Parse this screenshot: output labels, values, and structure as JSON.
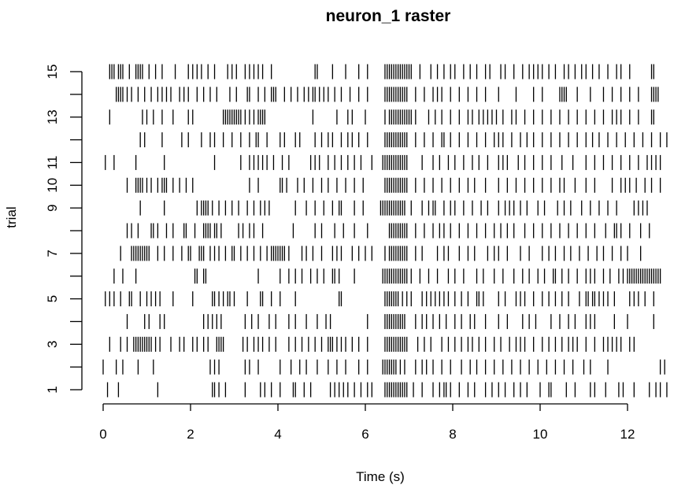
{
  "chart_data": {
    "type": "raster",
    "title": "neuron_1 raster",
    "xlabel": "Time (s)",
    "ylabel": "trial",
    "xlim": [
      0,
      12
    ],
    "ylim": [
      1,
      15
    ],
    "x_ticks": [
      0,
      2,
      4,
      6,
      8,
      10,
      12
    ],
    "x_tick_labels": [
      "0",
      "2",
      "4",
      "6",
      "8",
      "10",
      "12"
    ],
    "y_ticks": [
      1,
      2,
      3,
      4,
      5,
      6,
      7,
      8,
      9,
      10,
      11,
      12,
      13,
      14,
      15
    ],
    "y_tick_labels": [
      "1",
      "",
      "3",
      "",
      "5",
      "",
      "7",
      "",
      "9",
      "10",
      "11",
      "",
      "13",
      "",
      "15"
    ],
    "trials": [
      {
        "trial": 1,
        "spikes": [
          0.1,
          0.35,
          1.25,
          2.5,
          2.55,
          2.65,
          2.8,
          3.25,
          3.6,
          3.7,
          3.85,
          4.05,
          4.35,
          4.4,
          4.6,
          4.75,
          5.2,
          5.3,
          5.4,
          5.5,
          5.6,
          5.75,
          5.9,
          6.05,
          6.15,
          6.45,
          6.5,
          6.55,
          6.6,
          6.65,
          6.7,
          6.75,
          6.8,
          6.85,
          6.9,
          6.95,
          7.1,
          7.3,
          7.55,
          7.7,
          7.8,
          7.85,
          7.95,
          8.15,
          8.35,
          8.5,
          8.75,
          8.9,
          9.05,
          9.2,
          9.4,
          9.55,
          9.7,
          10.0,
          10.2,
          10.25,
          10.6,
          10.8,
          11.15,
          11.25,
          11.5,
          11.8,
          11.9,
          12.15,
          12.5,
          12.65,
          12.75,
          12.9
        ]
      },
      {
        "trial": 2,
        "spikes": [
          0.0,
          0.3,
          0.45,
          0.8,
          1.15,
          2.45,
          2.55,
          2.65,
          3.25,
          3.35,
          3.55,
          4.05,
          4.3,
          4.5,
          4.65,
          4.9,
          5.15,
          5.35,
          5.55,
          5.85,
          6.05,
          6.4,
          6.45,
          6.5,
          6.55,
          6.6,
          6.65,
          6.7,
          6.8,
          6.9,
          7.15,
          7.3,
          7.4,
          7.55,
          7.75,
          7.95,
          8.2,
          8.4,
          8.55,
          8.75,
          8.95,
          9.15,
          9.35,
          9.55,
          9.75,
          9.95,
          10.15,
          10.35,
          10.55,
          10.75,
          11.0,
          11.15,
          11.55,
          12.75,
          12.85
        ]
      },
      {
        "trial": 3,
        "spikes": [
          0.15,
          0.4,
          0.55,
          0.7,
          0.75,
          0.8,
          0.85,
          0.9,
          0.95,
          1.0,
          1.05,
          1.1,
          1.2,
          1.3,
          1.55,
          1.75,
          1.85,
          2.05,
          2.15,
          2.3,
          2.4,
          2.6,
          2.65,
          2.7,
          2.75,
          3.2,
          3.3,
          3.45,
          3.55,
          3.65,
          3.8,
          3.95,
          4.25,
          4.4,
          4.55,
          4.7,
          4.85,
          5.0,
          5.15,
          5.2,
          5.25,
          5.35,
          5.45,
          5.55,
          5.7,
          5.85,
          6.05,
          6.45,
          6.5,
          6.55,
          6.6,
          6.65,
          6.7,
          6.75,
          6.8,
          6.85,
          6.9,
          6.95,
          7.2,
          7.35,
          7.5,
          7.75,
          7.9,
          8.05,
          8.2,
          8.35,
          8.45,
          8.6,
          8.75,
          8.95,
          9.1,
          9.3,
          9.45,
          9.55,
          9.65,
          9.85,
          10.05,
          10.2,
          10.35,
          10.5,
          10.65,
          10.75,
          10.85,
          11.05,
          11.25,
          11.45,
          11.55,
          11.65,
          11.75,
          11.85,
          12.05,
          12.15
        ]
      },
      {
        "trial": 4,
        "spikes": [
          0.55,
          0.95,
          1.05,
          1.3,
          1.4,
          2.3,
          2.4,
          2.5,
          2.6,
          2.7,
          3.25,
          3.4,
          3.55,
          3.8,
          3.95,
          4.25,
          4.4,
          4.65,
          4.9,
          5.1,
          5.2,
          6.05,
          6.45,
          6.5,
          6.55,
          6.6,
          6.65,
          6.7,
          6.75,
          6.8,
          6.85,
          6.9,
          7.15,
          7.3,
          7.4,
          7.55,
          7.7,
          7.85,
          8.05,
          8.2,
          8.4,
          8.5,
          8.75,
          9.05,
          9.25,
          9.6,
          9.75,
          9.9,
          10.25,
          10.45,
          10.65,
          10.8,
          11.05,
          11.15,
          11.25,
          11.7,
          12.0,
          12.6
        ]
      },
      {
        "trial": 5,
        "spikes": [
          0.05,
          0.15,
          0.25,
          0.4,
          0.6,
          0.65,
          0.85,
          1.0,
          1.1,
          1.2,
          1.3,
          1.6,
          2.05,
          2.5,
          2.55,
          2.65,
          2.75,
          2.85,
          2.9,
          3.0,
          3.3,
          3.6,
          3.65,
          3.85,
          4.05,
          4.4,
          5.4,
          5.45,
          6.45,
          6.5,
          6.55,
          6.6,
          6.65,
          6.7,
          6.75,
          6.85,
          6.95,
          7.05,
          7.3,
          7.4,
          7.5,
          7.6,
          7.7,
          7.8,
          7.9,
          8.05,
          8.2,
          8.35,
          8.55,
          8.6,
          8.7,
          9.05,
          9.2,
          9.45,
          9.55,
          9.65,
          9.85,
          10.05,
          10.2,
          10.35,
          10.5,
          10.65,
          10.9,
          11.05,
          11.1,
          11.2,
          11.25,
          11.35,
          11.45,
          11.55,
          11.7,
          12.05,
          12.15,
          12.25,
          12.4,
          12.6
        ]
      },
      {
        "trial": 6,
        "spikes": [
          0.25,
          0.45,
          0.75,
          2.1,
          2.15,
          2.3,
          2.35,
          3.55,
          4.05,
          4.25,
          4.4,
          4.55,
          4.75,
          4.9,
          5.05,
          5.25,
          5.3,
          5.4,
          5.75,
          6.4,
          6.45,
          6.5,
          6.55,
          6.6,
          6.65,
          6.7,
          6.75,
          6.8,
          6.85,
          6.9,
          6.95,
          7.05,
          7.25,
          7.45,
          7.65,
          7.9,
          8.05,
          8.25,
          8.55,
          8.7,
          8.95,
          9.15,
          9.4,
          9.6,
          9.75,
          9.95,
          10.1,
          10.3,
          10.35,
          10.5,
          10.65,
          10.85,
          11.05,
          11.15,
          11.25,
          11.45,
          11.6,
          11.8,
          11.9,
          12.0,
          12.05,
          12.1,
          12.15,
          12.2,
          12.25,
          12.3,
          12.35,
          12.4,
          12.45,
          12.5,
          12.55,
          12.6,
          12.65,
          12.7,
          12.75
        ]
      },
      {
        "trial": 7,
        "spikes": [
          0.4,
          0.65,
          0.7,
          0.75,
          0.8,
          0.85,
          0.9,
          0.95,
          1.0,
          1.05,
          1.25,
          1.4,
          1.6,
          1.8,
          1.95,
          2.0,
          2.2,
          2.25,
          2.3,
          2.45,
          2.55,
          2.65,
          2.8,
          2.95,
          3.0,
          3.15,
          3.3,
          3.45,
          3.6,
          3.75,
          3.85,
          3.9,
          3.95,
          4.0,
          4.05,
          4.1,
          4.15,
          4.25,
          4.55,
          4.65,
          4.8,
          5.0,
          5.25,
          5.35,
          5.45,
          5.7,
          5.85,
          6.0,
          6.15,
          6.45,
          6.55,
          6.6,
          6.65,
          6.7,
          6.75,
          6.8,
          6.85,
          6.9,
          6.95,
          7.15,
          7.3,
          7.65,
          7.8,
          7.9,
          8.15,
          8.35,
          8.5,
          8.8,
          8.95,
          9.05,
          9.25,
          9.55,
          9.75,
          10.05,
          10.2,
          10.35,
          10.55,
          10.7,
          10.9,
          11.1,
          11.3,
          11.45,
          11.65,
          11.85,
          12.0,
          12.3
        ]
      },
      {
        "trial": 8,
        "spikes": [
          0.55,
          0.65,
          0.8,
          1.1,
          1.15,
          1.25,
          1.45,
          1.6,
          1.85,
          1.9,
          2.1,
          2.3,
          2.35,
          2.4,
          2.45,
          2.55,
          2.6,
          2.7,
          3.1,
          3.2,
          3.35,
          3.45,
          3.65,
          4.35,
          4.85,
          5.0,
          5.3,
          5.5,
          5.75,
          6.05,
          6.55,
          6.6,
          6.65,
          6.7,
          6.75,
          6.8,
          6.85,
          6.9,
          6.95,
          7.15,
          7.35,
          7.55,
          7.7,
          7.8,
          7.95,
          8.15,
          8.35,
          8.55,
          8.75,
          8.95,
          9.1,
          9.25,
          9.4,
          9.65,
          9.85,
          10.05,
          10.25,
          10.45,
          10.65,
          10.85,
          11.05,
          11.25,
          11.5,
          11.7,
          11.75,
          11.85,
          12.05,
          12.3,
          12.5
        ]
      },
      {
        "trial": 9,
        "spikes": [
          0.85,
          1.4,
          2.15,
          2.25,
          2.3,
          2.35,
          2.4,
          2.5,
          2.65,
          2.8,
          2.95,
          3.1,
          3.3,
          3.45,
          3.6,
          3.7,
          3.8,
          4.4,
          4.65,
          4.85,
          5.05,
          5.25,
          5.4,
          5.45,
          5.75,
          5.95,
          6.35,
          6.4,
          6.45,
          6.5,
          6.55,
          6.6,
          6.65,
          6.7,
          6.75,
          6.8,
          6.85,
          6.9,
          7.05,
          7.3,
          7.45,
          7.55,
          7.6,
          7.8,
          7.95,
          8.05,
          8.25,
          8.45,
          8.65,
          8.8,
          9.05,
          9.2,
          9.3,
          9.4,
          9.55,
          9.7,
          9.95,
          10.1,
          10.4,
          10.55,
          10.7,
          10.95,
          11.15,
          11.35,
          11.55,
          11.75,
          12.15,
          12.25,
          12.35,
          12.45
        ]
      },
      {
        "trial": 10,
        "spikes": [
          0.55,
          0.75,
          0.8,
          0.85,
          0.9,
          1.0,
          1.1,
          1.25,
          1.35,
          1.4,
          1.45,
          1.6,
          1.75,
          1.9,
          2.05,
          3.35,
          3.55,
          4.05,
          4.1,
          4.2,
          4.45,
          4.6,
          4.8,
          5.0,
          5.15,
          5.35,
          5.55,
          5.75,
          5.95,
          6.45,
          6.5,
          6.55,
          6.6,
          6.65,
          6.7,
          6.75,
          6.8,
          6.85,
          6.9,
          6.95,
          7.15,
          7.35,
          7.55,
          7.75,
          7.95,
          8.15,
          8.35,
          8.5,
          8.75,
          9.05,
          9.25,
          9.45,
          9.65,
          9.85,
          10.05,
          10.25,
          10.45,
          10.55,
          10.8,
          11.05,
          11.25,
          11.65,
          11.85,
          11.95,
          12.05,
          12.2,
          12.4,
          12.55,
          12.75
        ]
      },
      {
        "trial": 11,
        "spikes": [
          0.05,
          0.25,
          0.75,
          1.4,
          2.55,
          3.15,
          3.35,
          3.45,
          3.55,
          3.65,
          3.75,
          3.9,
          4.1,
          4.25,
          4.75,
          4.85,
          4.95,
          5.15,
          5.3,
          5.45,
          5.6,
          5.75,
          5.9,
          6.15,
          6.4,
          6.45,
          6.5,
          6.55,
          6.6,
          6.65,
          6.7,
          6.75,
          6.8,
          6.85,
          6.9,
          6.95,
          7.3,
          7.55,
          7.7,
          7.9,
          8.05,
          8.25,
          8.45,
          8.6,
          8.8,
          9.05,
          9.15,
          9.25,
          9.5,
          9.65,
          9.85,
          10.05,
          10.25,
          10.5,
          10.75,
          11.05,
          11.25,
          11.45,
          11.65,
          11.85,
          12.05,
          12.25,
          12.45,
          12.55,
          12.65,
          12.75
        ]
      },
      {
        "trial": 12,
        "spikes": [
          0.85,
          0.95,
          1.35,
          1.8,
          1.95,
          2.25,
          2.45,
          2.55,
          2.75,
          2.95,
          3.15,
          3.35,
          3.5,
          3.55,
          3.75,
          4.05,
          4.15,
          4.4,
          4.5,
          4.85,
          5.0,
          5.15,
          5.25,
          5.45,
          5.6,
          5.7,
          5.85,
          6.05,
          6.45,
          6.5,
          6.55,
          6.6,
          6.65,
          6.7,
          6.75,
          6.8,
          6.85,
          6.9,
          6.95,
          7.15,
          7.35,
          7.55,
          7.75,
          7.8,
          7.95,
          8.15,
          8.35,
          8.55,
          8.75,
          8.95,
          9.05,
          9.15,
          9.35,
          9.55,
          9.7,
          9.85,
          10.05,
          10.25,
          10.45,
          10.65,
          10.85,
          11.05,
          11.2,
          11.35,
          11.55,
          11.75,
          11.95,
          12.15,
          12.35,
          12.55,
          12.75,
          12.9
        ]
      },
      {
        "trial": 13,
        "spikes": [
          0.15,
          0.9,
          1.0,
          1.15,
          1.35,
          1.6,
          1.95,
          2.05,
          2.75,
          2.8,
          2.85,
          2.9,
          2.95,
          3.0,
          3.05,
          3.1,
          3.15,
          3.25,
          3.35,
          3.45,
          3.55,
          3.6,
          3.65,
          3.7,
          4.8,
          5.35,
          5.6,
          5.7,
          6.0,
          6.45,
          6.55,
          6.6,
          6.65,
          6.7,
          6.75,
          6.8,
          6.85,
          6.9,
          6.95,
          7.0,
          7.05,
          7.15,
          7.45,
          7.6,
          7.75,
          7.95,
          8.15,
          8.35,
          8.45,
          8.6,
          8.7,
          8.8,
          8.9,
          9.0,
          9.15,
          9.35,
          9.45,
          9.65,
          9.85,
          10.05,
          10.25,
          10.45,
          10.65,
          10.85,
          11.05,
          11.25,
          11.45,
          11.65,
          11.75,
          11.85,
          12.05,
          12.25,
          12.55,
          12.6
        ]
      },
      {
        "trial": 14,
        "spikes": [
          0.3,
          0.35,
          0.4,
          0.45,
          0.55,
          0.65,
          0.8,
          0.95,
          1.1,
          1.25,
          1.35,
          1.45,
          1.55,
          1.75,
          1.85,
          1.95,
          2.15,
          2.3,
          2.45,
          2.6,
          2.9,
          3.05,
          3.3,
          3.35,
          3.55,
          3.7,
          3.85,
          3.9,
          3.95,
          4.15,
          4.3,
          4.45,
          4.6,
          4.7,
          4.8,
          4.85,
          4.95,
          5.05,
          5.15,
          5.3,
          5.45,
          5.65,
          5.85,
          6.05,
          6.45,
          6.5,
          6.55,
          6.6,
          6.65,
          6.7,
          6.75,
          6.8,
          6.85,
          6.9,
          6.95,
          7.15,
          7.35,
          7.55,
          7.65,
          7.75,
          7.95,
          8.15,
          8.35,
          8.55,
          8.75,
          9.05,
          9.45,
          9.85,
          10.05,
          10.45,
          10.5,
          10.55,
          10.6,
          10.85,
          11.15,
          11.45,
          11.65,
          11.85,
          12.05,
          12.25,
          12.55,
          12.6,
          12.65,
          12.7
        ]
      },
      {
        "trial": 15,
        "spikes": [
          0.15,
          0.2,
          0.25,
          0.35,
          0.4,
          0.45,
          0.6,
          0.75,
          0.8,
          0.85,
          0.9,
          1.05,
          1.2,
          1.35,
          1.65,
          1.95,
          2.05,
          2.15,
          2.25,
          2.4,
          2.55,
          2.85,
          2.95,
          3.05,
          3.25,
          3.35,
          3.45,
          3.55,
          3.65,
          3.85,
          4.85,
          4.9,
          5.25,
          5.55,
          5.85,
          6.05,
          6.45,
          6.5,
          6.55,
          6.6,
          6.65,
          6.7,
          6.75,
          6.8,
          6.85,
          6.9,
          6.95,
          7.0,
          7.05,
          7.25,
          7.5,
          7.65,
          7.8,
          7.95,
          8.05,
          8.25,
          8.4,
          8.55,
          8.75,
          8.85,
          9.1,
          9.2,
          9.4,
          9.6,
          9.75,
          9.85,
          9.95,
          10.05,
          10.2,
          10.35,
          10.55,
          10.65,
          10.8,
          10.95,
          11.05,
          11.2,
          11.35,
          11.55,
          11.75,
          11.85,
          12.05,
          12.55,
          12.6
        ]
      }
    ]
  }
}
